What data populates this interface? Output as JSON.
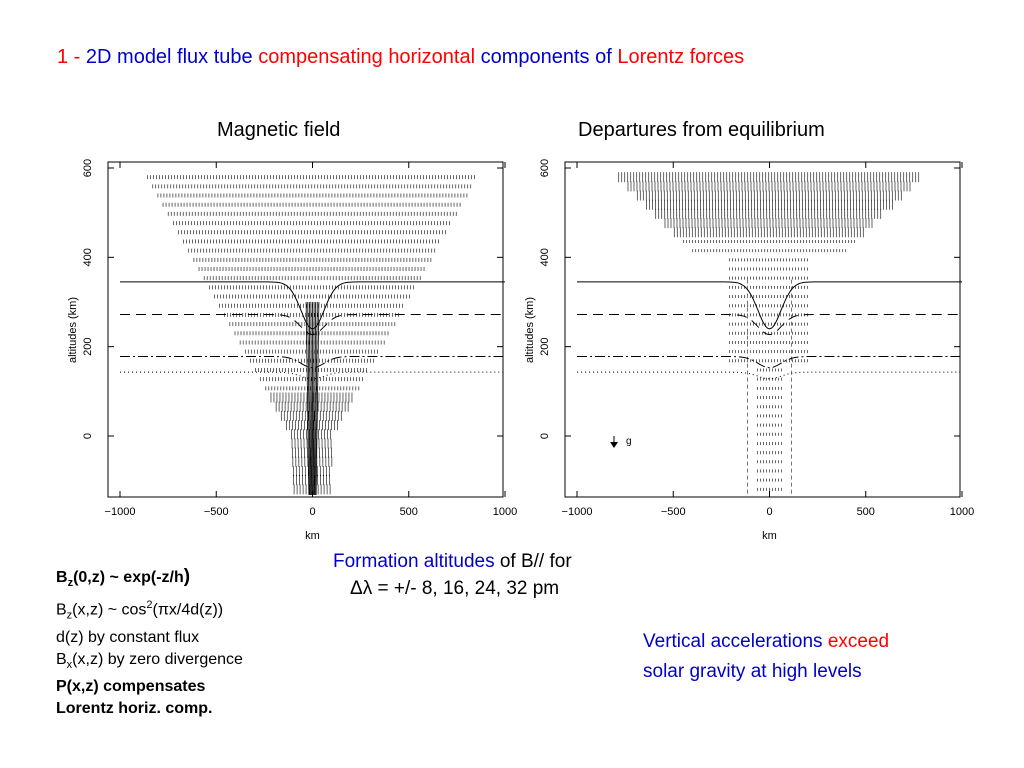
{
  "title": {
    "part1": "1 -",
    "part2": "2D model flux tube",
    "part3": "compensating horizontal",
    "part4": "components of",
    "part5": "Lorentz forces"
  },
  "panels": {
    "left_title": "Magnetic field",
    "right_title": "Departures from equilibrium"
  },
  "axes": {
    "ylabel": "altitudes (km)",
    "xlabel": "km",
    "yticks": [
      "0",
      "200",
      "400",
      "600"
    ],
    "xticks": [
      "−1000",
      "−500",
      "0",
      "500",
      "1000"
    ],
    "gravity_label": "g"
  },
  "notes": {
    "l1_a": "B",
    "l1_sub": "z",
    "l1_b": "(0,z) ~ exp(-z/h",
    "l1_c": ")",
    "l2_a": "B",
    "l2_sub": "z",
    "l2_b": "(x,z) ~ cos",
    "l2_sup": "2",
    "l2_c": "(πx/4d(z))",
    "l3": "d(z) by constant flux",
    "l4_a": "B",
    "l4_sub": "x",
    "l4_b": "(x,z) by zero divergence",
    "l5": "P(x,z) compensates",
    "l6": "Lorentz horiz. comp."
  },
  "formation": {
    "blue": "Formation altitudes",
    "black": "of B// for",
    "line2": "Δλ = +/- 8, 16, 24, 32 pm"
  },
  "vertical": {
    "part1": "Vertical accelerations",
    "part2": "exceed",
    "line2": "solar gravity at high levels"
  },
  "colors": {
    "red": "#ff0000",
    "blue": "#0000cc",
    "black": "#000000"
  }
}
